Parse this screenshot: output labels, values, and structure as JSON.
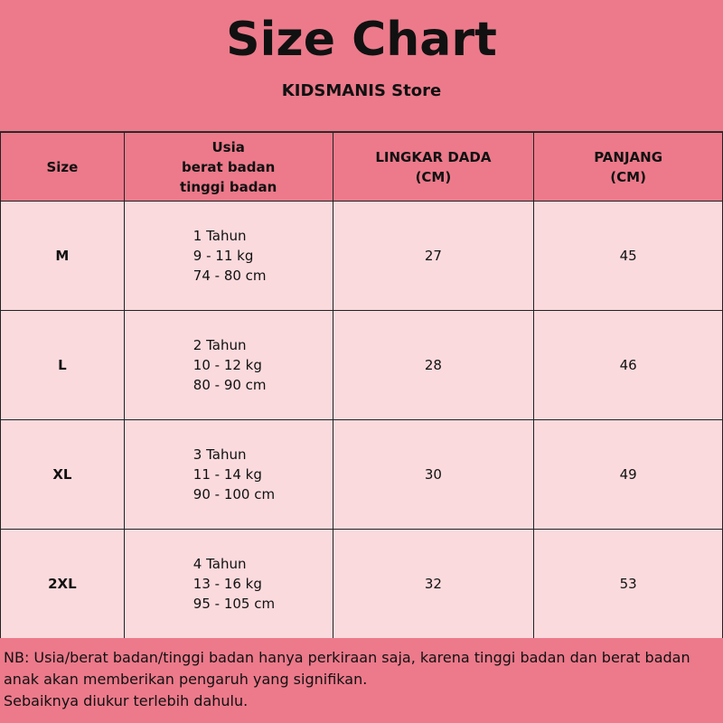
{
  "title": "Size Chart",
  "subtitle": "KIDSMANIS Store",
  "headers": {
    "size": "Size",
    "info": [
      "Usia",
      "berat badan",
      "tinggi badan"
    ],
    "chest": [
      "LINGKAR DADA",
      "(CM)"
    ],
    "length": [
      "PANJANG",
      "(CM)"
    ]
  },
  "rows": [
    {
      "size": "M",
      "age": "1 Tahun",
      "weight": "9 - 11 kg",
      "height": "74 - 80 cm",
      "chest": "27",
      "length": "45"
    },
    {
      "size": "L",
      "age": "2 Tahun",
      "weight": "10 - 12 kg",
      "height": "80 - 90 cm",
      "chest": "28",
      "length": "46"
    },
    {
      "size": "XL",
      "age": "3 Tahun",
      "weight": "11 - 14 kg",
      "height": "90 - 100 cm",
      "chest": "30",
      "length": "49"
    },
    {
      "size": "2XL",
      "age": "4 Tahun",
      "weight": "13 - 16 kg",
      "height": "95 - 105 cm",
      "chest": "32",
      "length": "53"
    }
  ],
  "note": [
    "NB: Usia/berat badan/tinggi badan hanya perkiraan saja, karena tinggi badan dan berat badan",
    "anak akan memberikan pengaruh yang signifikan.",
    "Sebaiknya diukur terlebih dahulu."
  ],
  "colors": {
    "header": "#ec7a8b",
    "body": "#fadadd"
  }
}
